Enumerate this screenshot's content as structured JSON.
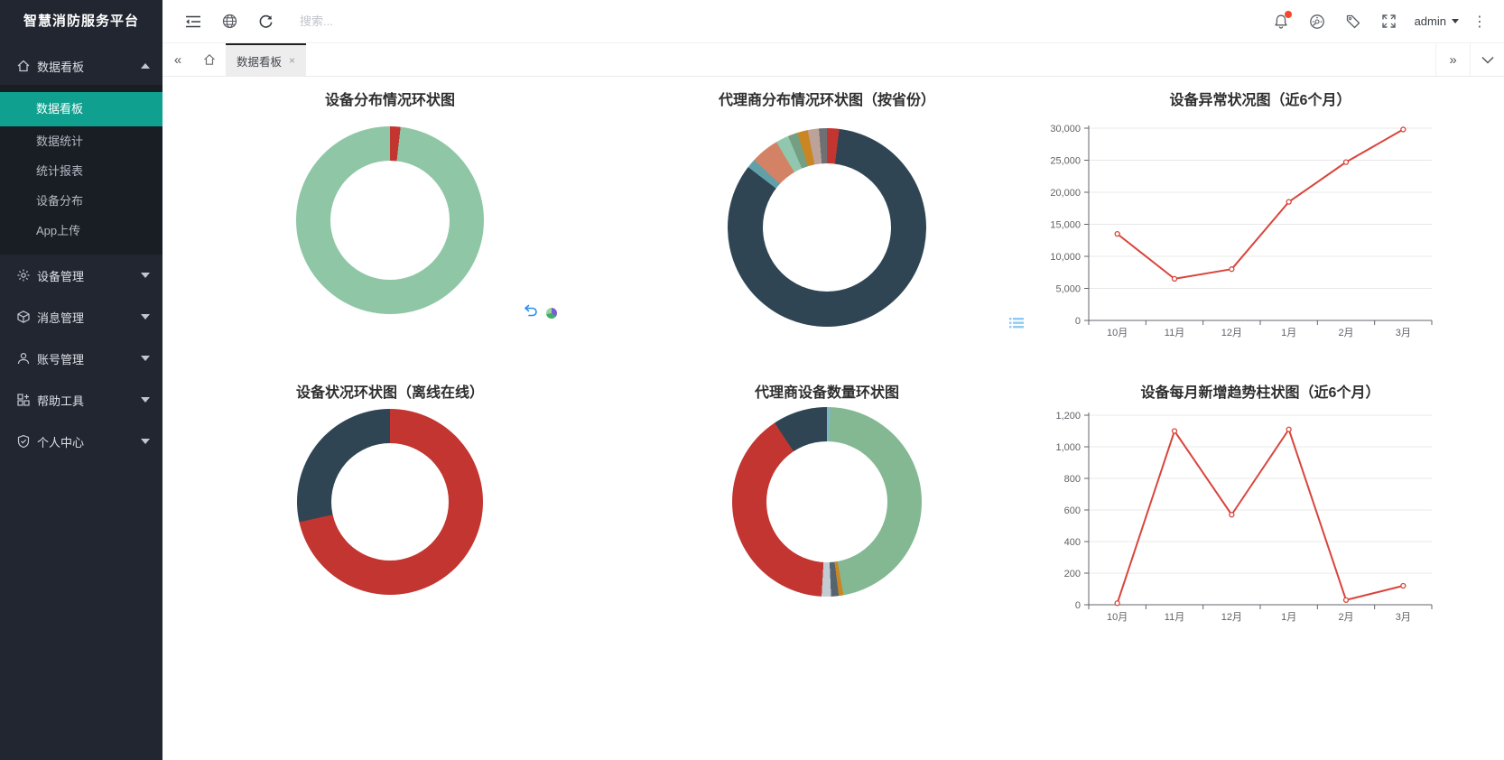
{
  "app": {
    "title": "智慧消防服务平台"
  },
  "sidebar": {
    "colors": {
      "bg": "#212630",
      "submenu_bg": "#191d24",
      "active_bg": "#0fa08f"
    },
    "sections": [
      {
        "label": "数据看板",
        "icon": "home-icon",
        "expanded": true,
        "children": [
          {
            "label": "数据看板",
            "active": true
          },
          {
            "label": "数据统计",
            "active": false
          },
          {
            "label": "统计报表",
            "active": false
          },
          {
            "label": "设备分布",
            "active": false
          },
          {
            "label": "App上传",
            "active": false
          }
        ]
      },
      {
        "label": "设备管理",
        "icon": "gear-icon"
      },
      {
        "label": "消息管理",
        "icon": "box-icon"
      },
      {
        "label": "账号管理",
        "icon": "user-icon"
      },
      {
        "label": "帮助工具",
        "icon": "tools-icon"
      },
      {
        "label": "个人中心",
        "icon": "shield-icon"
      }
    ]
  },
  "topbar": {
    "left_icons": [
      "menu-fold-icon",
      "globe-icon",
      "refresh-icon"
    ],
    "search": {
      "placeholder": "搜索...",
      "value": ""
    },
    "right_icons": [
      "bell-icon",
      "gauge-icon",
      "tag-icon",
      "fullscreen-icon",
      "more-icon"
    ],
    "bell_badge": {
      "visible": true,
      "color": "#f5472e"
    },
    "user": {
      "name": "admin"
    }
  },
  "tabbar": {
    "tabs": [
      {
        "label": "数据看板",
        "active": true,
        "closable": true
      }
    ]
  },
  "glyphs": {
    "close": "×",
    "back": "«",
    "forward": "»",
    "more_vertical": "⋮"
  },
  "toolbox_icons": {
    "middle": [
      "undo-icon",
      "theme-circle-icon"
    ],
    "right": [
      "data-view-icon"
    ]
  },
  "charts": [
    {
      "title": "设备分布情况环状图",
      "chart_data": {
        "type": "pie",
        "donut": true,
        "legend": "off",
        "slices": [
          {
            "color": "#c23531",
            "pct": 1.8
          },
          {
            "color": "#8fc7a6",
            "pct": 98.2
          }
        ]
      }
    },
    {
      "title": "代理商分布情况环状图（按省份）",
      "chart_data": {
        "type": "pie",
        "donut": true,
        "legend": "off",
        "slices": [
          {
            "color": "#c23531",
            "pct": 2.0
          },
          {
            "color": "#2f4554",
            "pct": 83.4
          },
          {
            "color": "#61a0a8",
            "pct": 1.5
          },
          {
            "color": "#d48265",
            "pct": 4.6
          },
          {
            "color": "#91c7ae",
            "pct": 2.1
          },
          {
            "color": "#749f83",
            "pct": 1.6
          },
          {
            "color": "#ca8622",
            "pct": 1.7
          },
          {
            "color": "#bda29a",
            "pct": 1.8
          },
          {
            "color": "#6e7074",
            "pct": 1.3
          }
        ]
      }
    },
    {
      "title": "设备异常状况图（近6个月）",
      "chart_data": {
        "type": "line",
        "grid": true,
        "line_color": "#d9453c",
        "categories": [
          "10月",
          "11月",
          "12月",
          "1月",
          "2月",
          "3月"
        ],
        "values": [
          13500,
          6500,
          8000,
          18500,
          24700,
          29800
        ],
        "ylim": [
          0,
          30000
        ],
        "yticks": [
          {
            "v": 0,
            "label": "0"
          },
          {
            "v": 5000,
            "label": "5,000"
          },
          {
            "v": 10000,
            "label": "10,000"
          },
          {
            "v": 15000,
            "label": "15,000"
          },
          {
            "v": 20000,
            "label": "20,000"
          },
          {
            "v": 25000,
            "label": "25,000"
          },
          {
            "v": 30000,
            "label": "30,000"
          }
        ]
      }
    },
    {
      "title": "设备状况环状图（离线在线）",
      "chart_data": {
        "type": "pie",
        "donut": true,
        "legend": "off",
        "slices": [
          {
            "color": "#c23531",
            "pct": 71.5
          },
          {
            "color": "#2f4554",
            "pct": 28.5
          }
        ]
      }
    },
    {
      "title": "代理商设备数量环状图",
      "chart_data": {
        "type": "pie",
        "donut": true,
        "legend": "off",
        "slices": [
          {
            "color": "#7db8c2",
            "pct": 0.6
          },
          {
            "color": "#84b893",
            "pct": 46.6
          },
          {
            "color": "#ca8622",
            "pct": 0.8
          },
          {
            "color": "#546570",
            "pct": 1.3
          },
          {
            "color": "#c4ccd3",
            "pct": 1.6
          },
          {
            "color": "#c23531",
            "pct": 39.8
          },
          {
            "color": "#2f4554",
            "pct": 9.3
          }
        ]
      }
    },
    {
      "title": "设备每月新增趋势柱状图（近6个月）",
      "chart_data": {
        "type": "line",
        "grid": true,
        "line_color": "#d9453c",
        "categories": [
          "10月",
          "11月",
          "12月",
          "1月",
          "2月",
          "3月"
        ],
        "values": [
          10,
          1100,
          570,
          1110,
          30,
          120
        ],
        "ylim": [
          0,
          1200
        ],
        "yticks": [
          {
            "v": 0,
            "label": "0"
          },
          {
            "v": 200,
            "label": "200"
          },
          {
            "v": 400,
            "label": "400"
          },
          {
            "v": 600,
            "label": "600"
          },
          {
            "v": 800,
            "label": "800"
          },
          {
            "v": 1000,
            "label": "1,000"
          },
          {
            "v": 1200,
            "label": "1,200"
          }
        ]
      }
    }
  ]
}
